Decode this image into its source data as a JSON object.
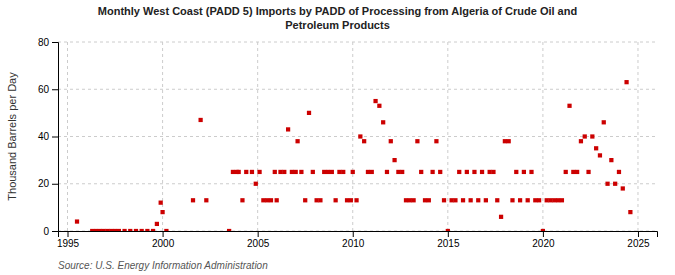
{
  "chart_data": {
    "type": "scatter",
    "title": "Monthly West Coast (PADD 5) Imports by PADD of Processing from Algeria of Crude Oil and\nPetroleum Products",
    "ylabel": "Thousand Barrels per Day",
    "source": "Source: U.S. Energy Information Administration",
    "color": "#cc0000",
    "marker": "square",
    "grid": true,
    "xlim": [
      1994.5,
      2026.0
    ],
    "ylim": [
      0,
      80
    ],
    "xticks": [
      1995,
      2000,
      2005,
      2010,
      2015,
      2020,
      2025
    ],
    "yticks": [
      0,
      20,
      40,
      60,
      80
    ],
    "x": [
      1995.5,
      1996.3,
      1996.5,
      1996.7,
      1996.9,
      1997.1,
      1997.3,
      1997.5,
      1997.7,
      1998.0,
      1998.3,
      1998.6,
      1998.9,
      1999.2,
      1999.5,
      1999.7,
      1999.9,
      2000.0,
      2000.2,
      2001.6,
      2002.0,
      2002.3,
      2003.5,
      2003.7,
      2003.9,
      2004.0,
      2004.2,
      2004.4,
      2004.7,
      2004.9,
      2005.1,
      2005.3,
      2005.5,
      2005.7,
      2005.9,
      2006.0,
      2006.2,
      2006.4,
      2006.6,
      2006.8,
      2007.0,
      2007.1,
      2007.3,
      2007.5,
      2007.7,
      2007.9,
      2008.1,
      2008.3,
      2008.5,
      2008.7,
      2008.9,
      2009.1,
      2009.3,
      2009.5,
      2009.7,
      2009.9,
      2010.0,
      2010.2,
      2010.4,
      2010.6,
      2010.8,
      2011.0,
      2011.2,
      2011.4,
      2011.6,
      2011.8,
      2012.0,
      2012.2,
      2012.4,
      2012.6,
      2012.8,
      2013.0,
      2013.2,
      2013.4,
      2013.6,
      2013.8,
      2014.0,
      2014.2,
      2014.4,
      2014.6,
      2014.8,
      2015.0,
      2015.2,
      2015.4,
      2015.6,
      2015.8,
      2016.0,
      2016.2,
      2016.4,
      2016.6,
      2016.8,
      2017.0,
      2017.2,
      2017.4,
      2017.6,
      2017.8,
      2018.0,
      2018.2,
      2018.4,
      2018.6,
      2018.8,
      2019.0,
      2019.2,
      2019.4,
      2019.6,
      2019.8,
      2020.0,
      2020.2,
      2020.4,
      2020.6,
      2020.8,
      2021.0,
      2021.2,
      2021.4,
      2021.6,
      2021.8,
      2022.0,
      2022.2,
      2022.4,
      2022.6,
      2022.8,
      2023.0,
      2023.2,
      2023.4,
      2023.6,
      2023.8,
      2024.0,
      2024.2,
      2024.4,
      2024.6
    ],
    "values": [
      4,
      0,
      0,
      0,
      0,
      0,
      0,
      0,
      0,
      0,
      0,
      0,
      0,
      0,
      0,
      3,
      12,
      8,
      0,
      13,
      47,
      13,
      0,
      25,
      25,
      25,
      13,
      25,
      25,
      20,
      25,
      13,
      13,
      13,
      25,
      13,
      25,
      25,
      43,
      25,
      25,
      38,
      25,
      13,
      50,
      25,
      13,
      13,
      25,
      25,
      25,
      13,
      25,
      25,
      13,
      13,
      25,
      13,
      40,
      38,
      25,
      25,
      55,
      53,
      46,
      25,
      38,
      30,
      25,
      25,
      13,
      13,
      13,
      38,
      25,
      13,
      13,
      25,
      38,
      25,
      13,
      0,
      13,
      13,
      25,
      13,
      25,
      13,
      25,
      13,
      25,
      13,
      25,
      25,
      13,
      6,
      38,
      38,
      13,
      25,
      13,
      25,
      13,
      25,
      13,
      13,
      0,
      13,
      13,
      13,
      13,
      13,
      25,
      53,
      25,
      25,
      38,
      40,
      25,
      40,
      35,
      32,
      46,
      20,
      30,
      20,
      25,
      18,
      63,
      8
    ]
  }
}
